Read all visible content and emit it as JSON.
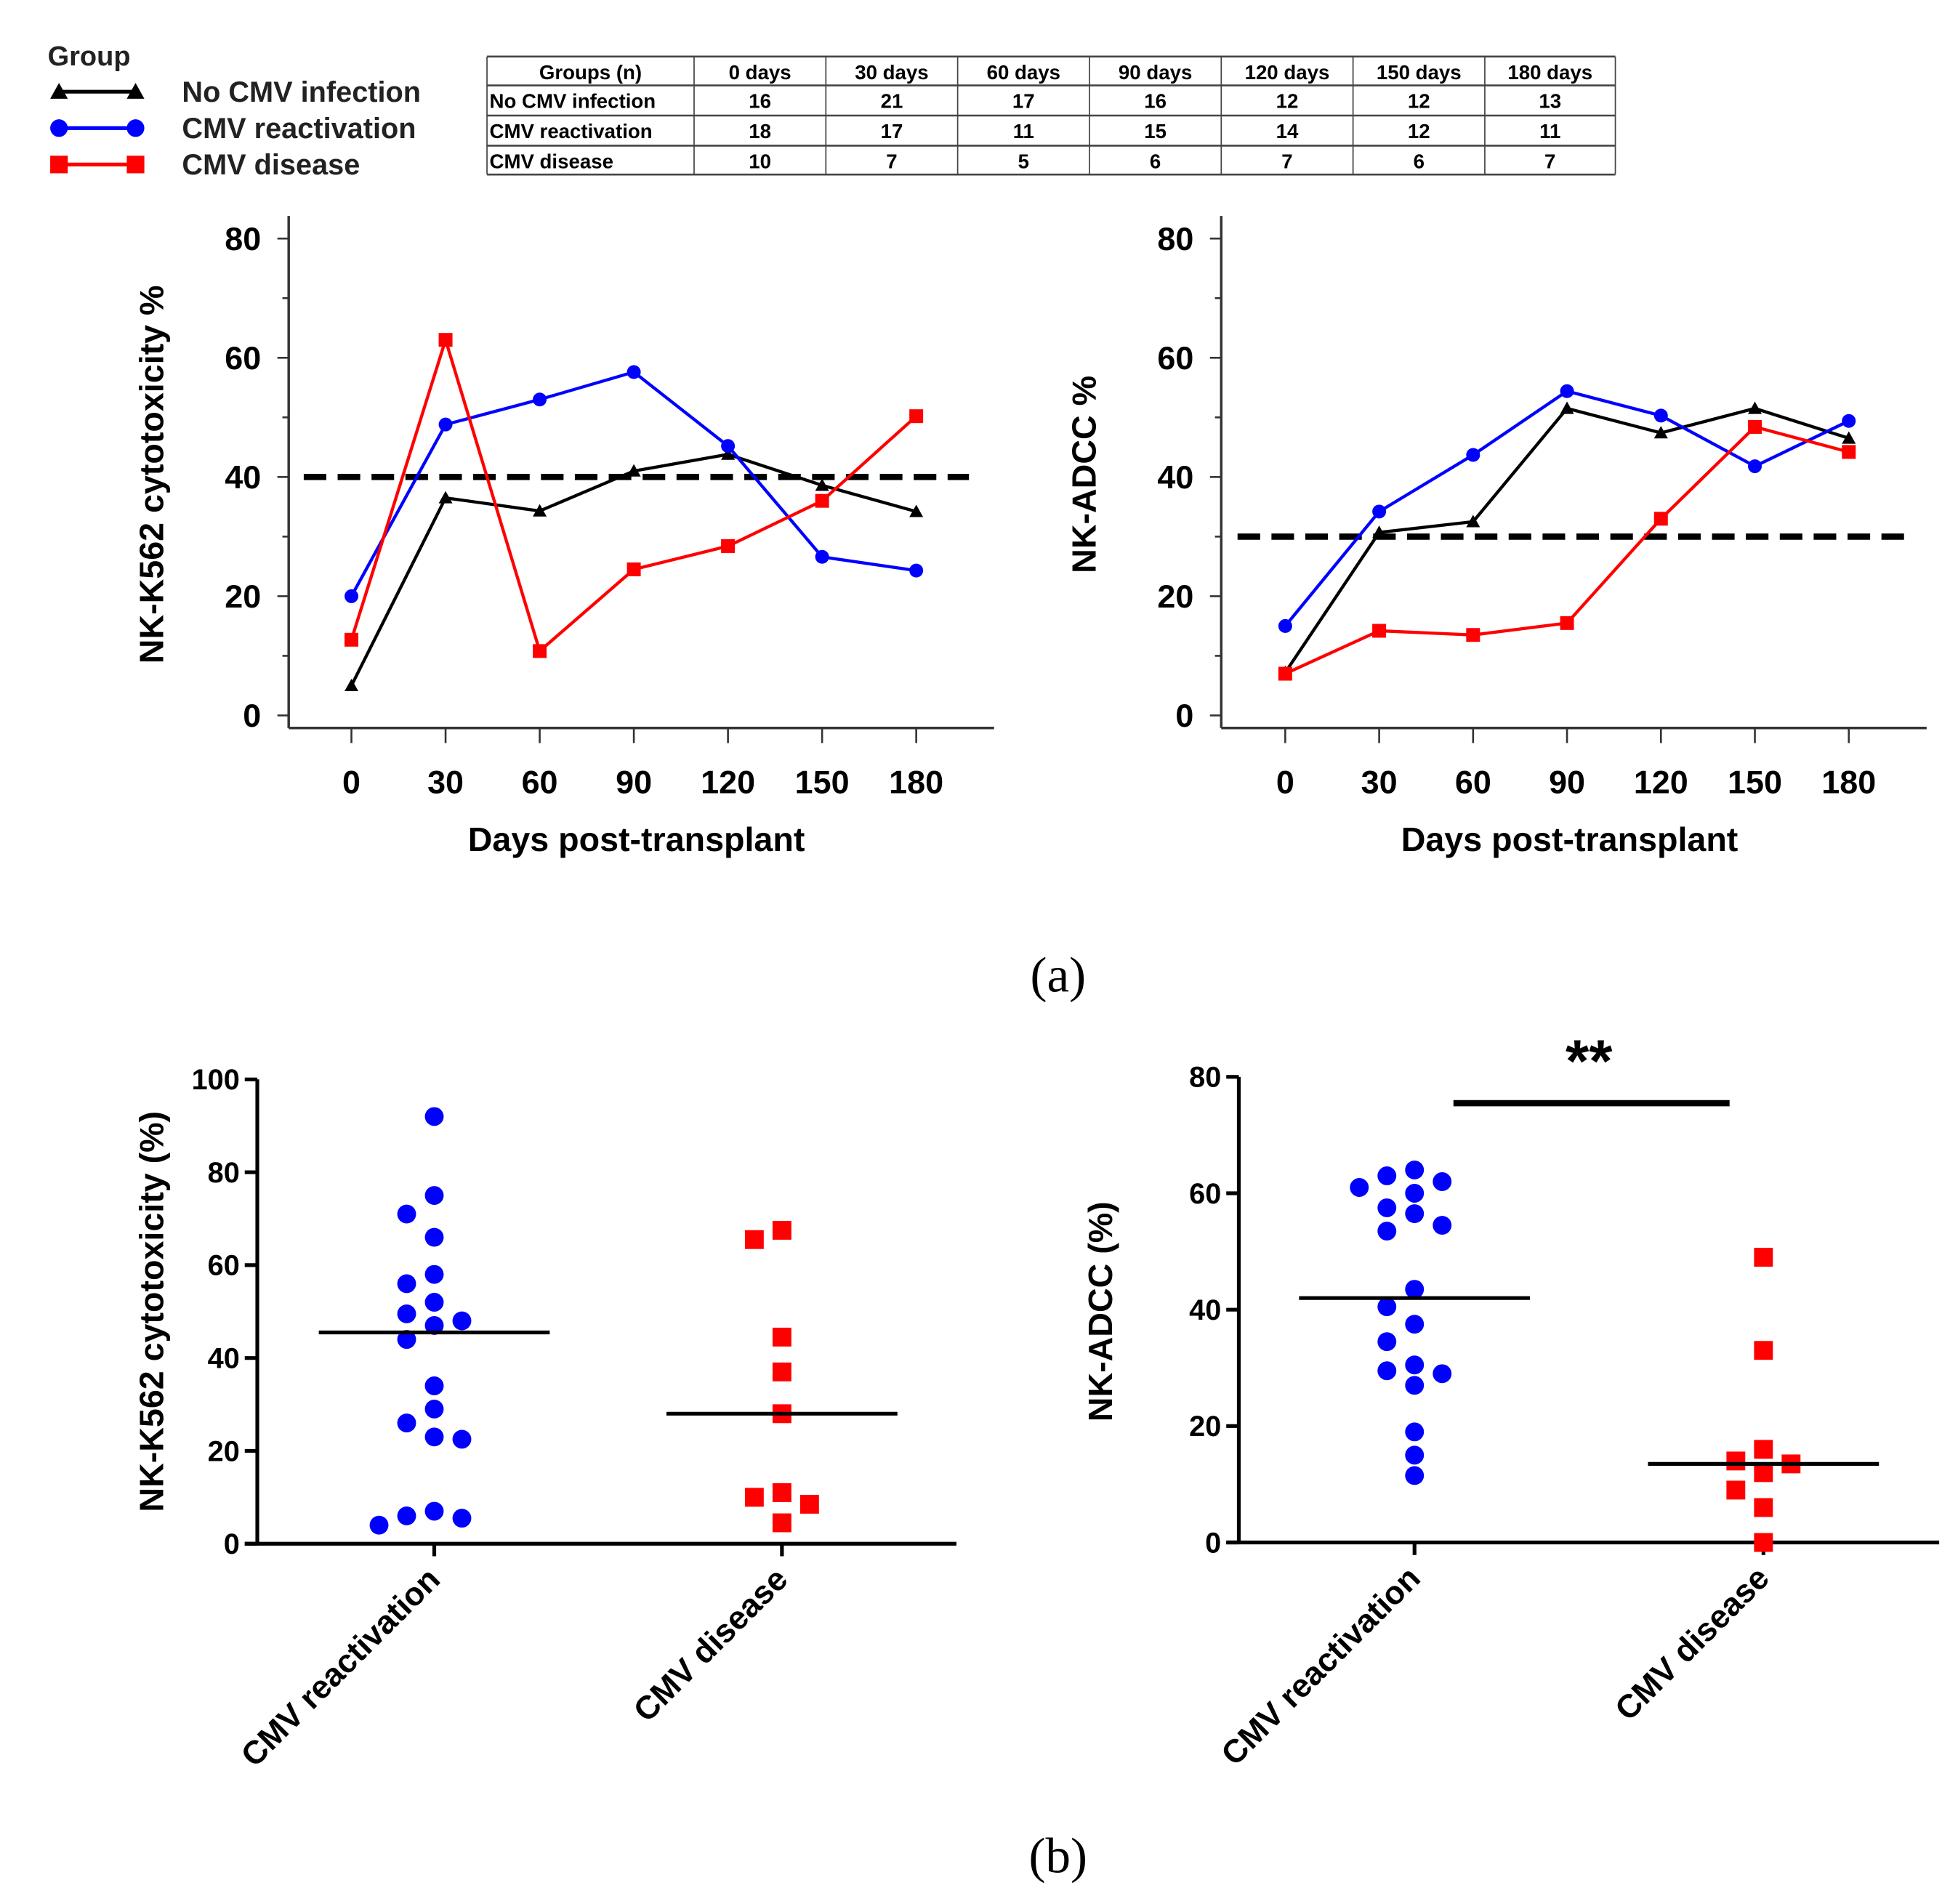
{
  "legend": {
    "title": "Group",
    "items": [
      {
        "label": "No CMV infection",
        "color": "#000000",
        "marker": "triangle"
      },
      {
        "label": "CMV reactivation",
        "color": "#0000ff",
        "marker": "circle"
      },
      {
        "label": "CMV disease",
        "color": "#ff0000",
        "marker": "square"
      }
    ]
  },
  "table": {
    "headers": [
      "Groups (n)",
      "0 days",
      "30 days",
      "60 days",
      "90 days",
      "120 days",
      "150 days",
      "180 days"
    ],
    "rows": [
      [
        "No CMV infection",
        "16",
        "21",
        "17",
        "16",
        "12",
        "12",
        "13"
      ],
      [
        "CMV reactivation",
        "18",
        "17",
        "11",
        "15",
        "14",
        "12",
        "11"
      ],
      [
        "CMV disease",
        "10",
        "7",
        "5",
        "6",
        "7",
        "6",
        "7"
      ]
    ]
  },
  "panel_labels": {
    "a": "(a)",
    "b": "(b)"
  },
  "chart_data": [
    {
      "type": "line",
      "title": "",
      "xlabel": "Days post-transplant",
      "ylabel": "NK-K562 cytotoxicity %",
      "x": [
        0,
        30,
        60,
        90,
        120,
        150,
        180
      ],
      "xticks": [
        "0",
        "30",
        "60",
        "90",
        "120",
        "150",
        "180"
      ],
      "yticks": [
        "0",
        "20",
        "40",
        "60",
        "80"
      ],
      "ylim": [
        0,
        80
      ],
      "threshold": 40,
      "series": [
        {
          "name": "No CMV infection",
          "values": [
            5,
            36.5,
            34.3,
            41,
            43.8,
            38.6,
            34.2
          ]
        },
        {
          "name": "CMV reactivation",
          "values": [
            20,
            48.8,
            53,
            57.6,
            45.2,
            26.6,
            24.3
          ]
        },
        {
          "name": "CMV disease",
          "values": [
            12.7,
            63,
            10.8,
            24.5,
            28.4,
            36,
            50.2
          ]
        }
      ]
    },
    {
      "type": "line",
      "title": "",
      "xlabel": "Days post-transplant",
      "ylabel": "NK-ADCC %",
      "x": [
        0,
        30,
        60,
        90,
        120,
        150,
        180
      ],
      "xticks": [
        "0",
        "30",
        "60",
        "90",
        "120",
        "150",
        "180"
      ],
      "yticks": [
        "0",
        "20",
        "40",
        "60",
        "80"
      ],
      "ylim": [
        0,
        80
      ],
      "threshold": 30,
      "series": [
        {
          "name": "No CMV infection",
          "values": [
            7.2,
            30.7,
            32.5,
            51.5,
            47.4,
            51.5,
            46.5
          ]
        },
        {
          "name": "CMV reactivation",
          "values": [
            15,
            34.2,
            43.7,
            54.4,
            50.3,
            41.8,
            49.4
          ]
        },
        {
          "name": "CMV disease",
          "values": [
            7,
            14.2,
            13.5,
            15.5,
            33,
            48.4,
            44.2
          ]
        }
      ]
    },
    {
      "type": "scatter",
      "ylabel": "NK-K562 cytotoxicity (%)",
      "categories": [
        "CMV reactivation",
        "CMV disease"
      ],
      "yticks": [
        "0",
        "20",
        "40",
        "60",
        "80",
        "100"
      ],
      "ylim": [
        0,
        100
      ],
      "groups": [
        {
          "name": "CMV reactivation",
          "values": [
            92,
            75,
            71,
            66,
            58,
            56,
            52,
            49.5,
            48,
            47,
            44,
            34,
            29,
            26,
            23,
            22.5,
            7,
            6,
            5.5,
            4
          ],
          "mean": 45.5
        },
        {
          "name": "CMV disease",
          "values": [
            67.5,
            65.5,
            44.5,
            37,
            28,
            11,
            10,
            8.5,
            4.5
          ],
          "mean": 28
        }
      ]
    },
    {
      "type": "scatter",
      "ylabel": "NK-ADCC (%)",
      "categories": [
        "CMV reactivation",
        "CMV disease"
      ],
      "yticks": [
        "0",
        "20",
        "40",
        "60",
        "80"
      ],
      "ylim": [
        0,
        80
      ],
      "significance": "**",
      "groups": [
        {
          "name": "CMV reactivation",
          "values": [
            64,
            63,
            62,
            61,
            60,
            57.5,
            56.5,
            54.5,
            53.5,
            43.5,
            40.5,
            37.5,
            34.5,
            30.5,
            29.5,
            29,
            27,
            19,
            15,
            11.5
          ],
          "mean": 42
        },
        {
          "name": "CMV disease",
          "values": [
            49,
            33,
            16,
            14,
            13.5,
            12,
            9,
            6,
            0
          ],
          "mean": 13.5
        }
      ]
    }
  ]
}
